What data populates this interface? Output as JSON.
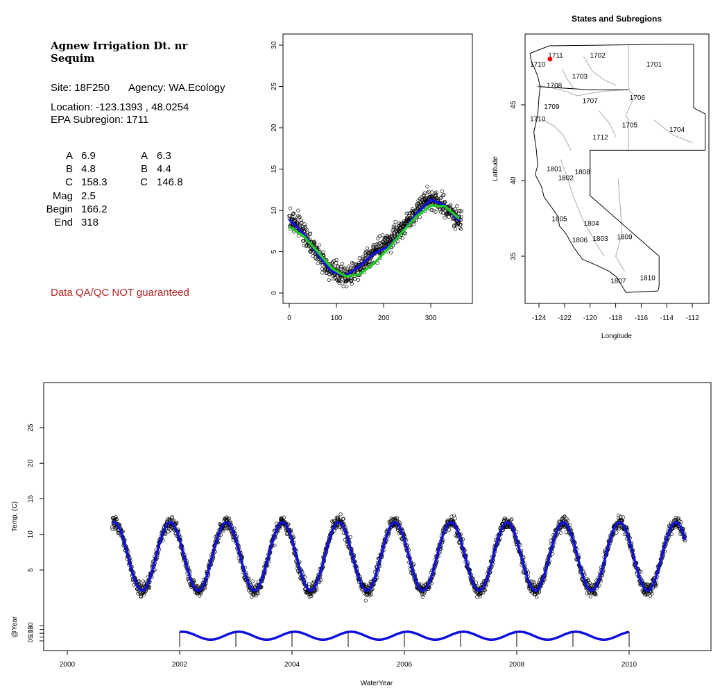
{
  "site": {
    "title_line1": "Agnew Irrigation Dt. nr",
    "title_line2": "Sequim",
    "site_line": "Site: 18F250",
    "agency_line": "Agency: WA.Ecology",
    "location_line": "Location: -123.1393 , 48.0254",
    "subregion_line": "EPA Subregion: 1711",
    "disclaimer": "Data QA/QC NOT guaranteed"
  },
  "params": {
    "left": [
      {
        "label": "A",
        "value": "6.9"
      },
      {
        "label": "B",
        "value": "4.8"
      },
      {
        "label": "C",
        "value": "158.3"
      },
      {
        "label": "Mag",
        "value": "2.5"
      },
      {
        "label": "Begin",
        "value": "166.2"
      },
      {
        "label": "End",
        "value": "318"
      }
    ],
    "right": [
      {
        "label": "A",
        "value": "6.3"
      },
      {
        "label": "B",
        "value": "4.4"
      },
      {
        "label": "C",
        "value": "146.8"
      }
    ]
  },
  "colors": {
    "points": "#000000",
    "fit_blue": "#1010e0",
    "fit_green": "#22cc22",
    "site_marker": "#ff0000",
    "boundary": "#aaaaaa"
  },
  "chart_data": [
    {
      "type": "scatter",
      "title": "",
      "xlabel": "",
      "ylabel": "",
      "xlim": [
        0,
        366
      ],
      "ylim": [
        0,
        30
      ],
      "x_ticks": [
        0,
        100,
        200,
        300
      ],
      "y_ticks": [
        0,
        5,
        10,
        15,
        20,
        25,
        30
      ],
      "series": [
        {
          "style": "points",
          "x": [
            0,
            15,
            30,
            45,
            60,
            75,
            90,
            105,
            120,
            135,
            150,
            165,
            180,
            195,
            210,
            225,
            240,
            255,
            270,
            285,
            300,
            315,
            330,
            345,
            360
          ],
          "y": [
            8.8,
            8.5,
            7.4,
            6.1,
            4.8,
            3.6,
            2.7,
            2.2,
            2.0,
            2.4,
            3.2,
            4.0,
            5.0,
            5.6,
            6.2,
            7.0,
            8.0,
            9.0,
            10.0,
            11.0,
            11.5,
            11.0,
            10.4,
            9.6,
            8.8
          ]
        },
        {
          "style": "line",
          "color": "blue",
          "x": [
            0,
            30,
            60,
            90,
            120,
            150,
            180,
            210,
            240,
            270,
            300,
            330,
            360
          ],
          "y": [
            8.9,
            7.2,
            4.7,
            2.6,
            2.1,
            3.3,
            4.8,
            5.6,
            7.4,
            9.6,
            11.3,
            10.6,
            8.7
          ]
        },
        {
          "style": "line",
          "color": "green",
          "x": [
            0,
            30,
            60,
            90,
            120,
            150,
            180,
            210,
            240,
            270,
            300,
            330,
            360
          ],
          "y": [
            8.0,
            6.9,
            5.0,
            3.0,
            2.0,
            2.3,
            3.6,
            5.4,
            7.4,
            9.3,
            10.6,
            10.5,
            9.0
          ]
        }
      ]
    },
    {
      "type": "map",
      "title": "States and Subregions",
      "xlabel": "Longitude",
      "ylabel": "Latitude",
      "xlim": [
        -125.5,
        -110.5
      ],
      "ylim": [
        32.2,
        49.5
      ],
      "x_ticks": [
        -124,
        -122,
        -120,
        -118,
        -116,
        -114,
        -112
      ],
      "y_ticks": [
        35,
        40,
        45
      ],
      "regions": [
        {
          "label": "1711",
          "lon": -122.7,
          "lat": 48.3
        },
        {
          "label": "1702",
          "lon": -119.4,
          "lat": 48.3
        },
        {
          "label": "1701",
          "lon": -115.0,
          "lat": 47.7
        },
        {
          "label": "1710",
          "lon": -124.1,
          "lat": 47.7
        },
        {
          "label": "1703",
          "lon": -120.8,
          "lat": 46.9
        },
        {
          "label": "1708",
          "lon": -122.8,
          "lat": 46.3
        },
        {
          "label": "1706",
          "lon": -116.3,
          "lat": 45.5
        },
        {
          "label": "1707",
          "lon": -120.0,
          "lat": 45.3
        },
        {
          "label": "1709",
          "lon": -123.0,
          "lat": 44.9
        },
        {
          "label": "1710",
          "lon": -124.1,
          "lat": 44.1
        },
        {
          "label": "1705",
          "lon": -116.9,
          "lat": 43.7
        },
        {
          "label": "1704",
          "lon": -113.2,
          "lat": 43.4
        },
        {
          "label": "1712",
          "lon": -119.2,
          "lat": 42.9
        },
        {
          "label": "1801",
          "lon": -122.8,
          "lat": 40.8
        },
        {
          "label": "1808",
          "lon": -120.6,
          "lat": 40.6
        },
        {
          "label": "1802",
          "lon": -121.9,
          "lat": 40.2
        },
        {
          "label": "1805",
          "lon": -122.4,
          "lat": 37.5
        },
        {
          "label": "1804",
          "lon": -119.9,
          "lat": 37.2
        },
        {
          "label": "1806",
          "lon": -120.8,
          "lat": 36.1
        },
        {
          "label": "1803",
          "lon": -119.2,
          "lat": 36.2
        },
        {
          "label": "1809",
          "lon": -117.3,
          "lat": 36.3
        },
        {
          "label": "1810",
          "lon": -115.5,
          "lat": 33.6
        },
        {
          "label": "1807",
          "lon": -117.8,
          "lat": 33.4
        }
      ],
      "site": {
        "lon": -123.1393,
        "lat": 48.0254
      }
    },
    {
      "type": "line",
      "title": "",
      "xlabel": "WaterYear",
      "ylabel": "Temp. (C)",
      "y2label": "@Year",
      "xlim": [
        1999.9,
        2011.4
      ],
      "ylim": [
        0,
        30
      ],
      "x_ticks": [
        2000,
        2002,
        2004,
        2006,
        2008,
        2010
      ],
      "y_ticks": [
        5,
        10,
        15,
        20,
        25
      ],
      "y2_ticks": [
        0,
        5,
        10,
        15,
        20
      ],
      "fit_annual_mean": 6.9,
      "fit_amplitude": 4.8,
      "fit_peak_day": 303,
      "series": [
        {
          "name": "daily",
          "style": "points",
          "x": [
            2000.8,
            2011.0
          ],
          "y": [
            9.5,
            9.0
          ]
        },
        {
          "name": "fit",
          "style": "line",
          "x": [
            2000.8,
            2011.0
          ],
          "y": [
            10.3,
            9.6
          ]
        },
        {
          "name": "annual",
          "style": "line",
          "x": [
            2002.0,
            2010.0
          ],
          "y": [
            9.1,
            9.0
          ]
        }
      ]
    }
  ]
}
